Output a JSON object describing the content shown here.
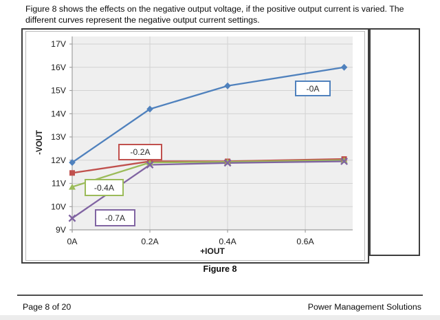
{
  "page": {
    "intro_text": "Figure 8 shows the effects on the negative output voltage, if the positive output current is varied. The different curves represent the negative output current settings.",
    "figure_caption": "Figure 8",
    "footer": {
      "page_label": "Page 8 of 20",
      "company": "Power Management Solutions"
    }
  },
  "chart_data": {
    "type": "line",
    "title": "",
    "xlabel": "+IOUT",
    "ylabel": "-VOUT",
    "x_tick_labels": [
      "0A",
      "0.2A",
      "0.4A",
      "0.6A"
    ],
    "x_tick_values": [
      0,
      0.2,
      0.4,
      0.6
    ],
    "y_tick_labels": [
      "9V",
      "10V",
      "11V",
      "12V",
      "13V",
      "14V",
      "15V",
      "16V",
      "17V"
    ],
    "xlim": [
      0,
      0.722
    ],
    "ylim": [
      9,
      17
    ],
    "grid": true,
    "legend_position": "none",
    "plot_bg": "#efefef",
    "grid_color": "#d2d2d2",
    "axis_color": "#9f9f9f",
    "tick_label_color": "#1a1a1a",
    "series": [
      {
        "name": "-0A",
        "color": "#4f81bd",
        "marker": "diamond",
        "x": [
          0,
          0.2,
          0.4,
          0.7
        ],
        "y": [
          11.9,
          14.2,
          15.2,
          16.0
        ]
      },
      {
        "name": "-0.2A",
        "color": "#c0504d",
        "marker": "square",
        "x": [
          0,
          0.2,
          0.4,
          0.7
        ],
        "y": [
          11.45,
          11.95,
          11.95,
          12.05
        ]
      },
      {
        "name": "-0.4A",
        "color": "#9bbb59",
        "marker": "triangle",
        "x": [
          0,
          0.2,
          0.4,
          0.7
        ],
        "y": [
          10.85,
          11.9,
          11.93,
          12.0
        ]
      },
      {
        "name": "-0.7A",
        "color": "#8064a2",
        "marker": "x",
        "x": [
          0,
          0.2,
          0.4,
          0.7
        ],
        "y": [
          9.5,
          11.8,
          11.88,
          11.95
        ]
      }
    ]
  }
}
